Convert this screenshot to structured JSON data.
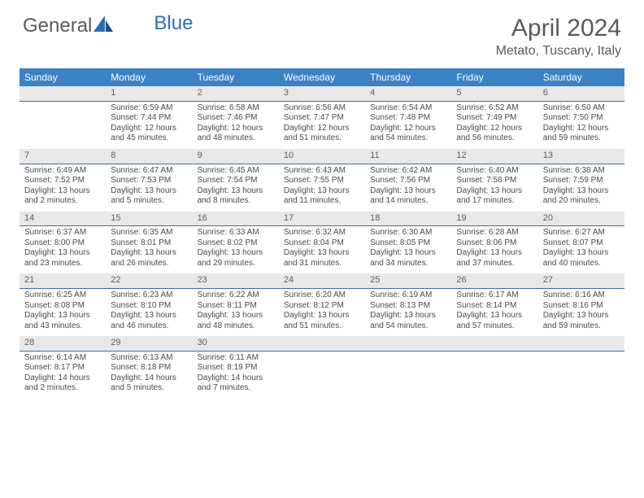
{
  "logo": {
    "text1": "General",
    "text2": "Blue"
  },
  "title": "April 2024",
  "location": "Metato, Tuscany, Italy",
  "colors": {
    "header_bg": "#3b82c4",
    "header_text": "#ffffff",
    "daynum_bg": "#e8e8e8",
    "daynum_border": "#3b6fa5",
    "body_text": "#4a4a4a",
    "title_text": "#5a5a5a",
    "logo_blue": "#2b6fb5"
  },
  "daysOfWeek": [
    "Sunday",
    "Monday",
    "Tuesday",
    "Wednesday",
    "Thursday",
    "Friday",
    "Saturday"
  ],
  "weeks": [
    [
      null,
      {
        "n": "1",
        "sr": "Sunrise: 6:59 AM",
        "ss": "Sunset: 7:44 PM",
        "d1": "Daylight: 12 hours",
        "d2": "and 45 minutes."
      },
      {
        "n": "2",
        "sr": "Sunrise: 6:58 AM",
        "ss": "Sunset: 7:46 PM",
        "d1": "Daylight: 12 hours",
        "d2": "and 48 minutes."
      },
      {
        "n": "3",
        "sr": "Sunrise: 6:56 AM",
        "ss": "Sunset: 7:47 PM",
        "d1": "Daylight: 12 hours",
        "d2": "and 51 minutes."
      },
      {
        "n": "4",
        "sr": "Sunrise: 6:54 AM",
        "ss": "Sunset: 7:48 PM",
        "d1": "Daylight: 12 hours",
        "d2": "and 54 minutes."
      },
      {
        "n": "5",
        "sr": "Sunrise: 6:52 AM",
        "ss": "Sunset: 7:49 PM",
        "d1": "Daylight: 12 hours",
        "d2": "and 56 minutes."
      },
      {
        "n": "6",
        "sr": "Sunrise: 6:50 AM",
        "ss": "Sunset: 7:50 PM",
        "d1": "Daylight: 12 hours",
        "d2": "and 59 minutes."
      }
    ],
    [
      {
        "n": "7",
        "sr": "Sunrise: 6:49 AM",
        "ss": "Sunset: 7:52 PM",
        "d1": "Daylight: 13 hours",
        "d2": "and 2 minutes."
      },
      {
        "n": "8",
        "sr": "Sunrise: 6:47 AM",
        "ss": "Sunset: 7:53 PM",
        "d1": "Daylight: 13 hours",
        "d2": "and 5 minutes."
      },
      {
        "n": "9",
        "sr": "Sunrise: 6:45 AM",
        "ss": "Sunset: 7:54 PM",
        "d1": "Daylight: 13 hours",
        "d2": "and 8 minutes."
      },
      {
        "n": "10",
        "sr": "Sunrise: 6:43 AM",
        "ss": "Sunset: 7:55 PM",
        "d1": "Daylight: 13 hours",
        "d2": "and 11 minutes."
      },
      {
        "n": "11",
        "sr": "Sunrise: 6:42 AM",
        "ss": "Sunset: 7:56 PM",
        "d1": "Daylight: 13 hours",
        "d2": "and 14 minutes."
      },
      {
        "n": "12",
        "sr": "Sunrise: 6:40 AM",
        "ss": "Sunset: 7:58 PM",
        "d1": "Daylight: 13 hours",
        "d2": "and 17 minutes."
      },
      {
        "n": "13",
        "sr": "Sunrise: 6:38 AM",
        "ss": "Sunset: 7:59 PM",
        "d1": "Daylight: 13 hours",
        "d2": "and 20 minutes."
      }
    ],
    [
      {
        "n": "14",
        "sr": "Sunrise: 6:37 AM",
        "ss": "Sunset: 8:00 PM",
        "d1": "Daylight: 13 hours",
        "d2": "and 23 minutes."
      },
      {
        "n": "15",
        "sr": "Sunrise: 6:35 AM",
        "ss": "Sunset: 8:01 PM",
        "d1": "Daylight: 13 hours",
        "d2": "and 26 minutes."
      },
      {
        "n": "16",
        "sr": "Sunrise: 6:33 AM",
        "ss": "Sunset: 8:02 PM",
        "d1": "Daylight: 13 hours",
        "d2": "and 29 minutes."
      },
      {
        "n": "17",
        "sr": "Sunrise: 6:32 AM",
        "ss": "Sunset: 8:04 PM",
        "d1": "Daylight: 13 hours",
        "d2": "and 31 minutes."
      },
      {
        "n": "18",
        "sr": "Sunrise: 6:30 AM",
        "ss": "Sunset: 8:05 PM",
        "d1": "Daylight: 13 hours",
        "d2": "and 34 minutes."
      },
      {
        "n": "19",
        "sr": "Sunrise: 6:28 AM",
        "ss": "Sunset: 8:06 PM",
        "d1": "Daylight: 13 hours",
        "d2": "and 37 minutes."
      },
      {
        "n": "20",
        "sr": "Sunrise: 6:27 AM",
        "ss": "Sunset: 8:07 PM",
        "d1": "Daylight: 13 hours",
        "d2": "and 40 minutes."
      }
    ],
    [
      {
        "n": "21",
        "sr": "Sunrise: 6:25 AM",
        "ss": "Sunset: 8:08 PM",
        "d1": "Daylight: 13 hours",
        "d2": "and 43 minutes."
      },
      {
        "n": "22",
        "sr": "Sunrise: 6:23 AM",
        "ss": "Sunset: 8:10 PM",
        "d1": "Daylight: 13 hours",
        "d2": "and 46 minutes."
      },
      {
        "n": "23",
        "sr": "Sunrise: 6:22 AM",
        "ss": "Sunset: 8:11 PM",
        "d1": "Daylight: 13 hours",
        "d2": "and 48 minutes."
      },
      {
        "n": "24",
        "sr": "Sunrise: 6:20 AM",
        "ss": "Sunset: 8:12 PM",
        "d1": "Daylight: 13 hours",
        "d2": "and 51 minutes."
      },
      {
        "n": "25",
        "sr": "Sunrise: 6:19 AM",
        "ss": "Sunset: 8:13 PM",
        "d1": "Daylight: 13 hours",
        "d2": "and 54 minutes."
      },
      {
        "n": "26",
        "sr": "Sunrise: 6:17 AM",
        "ss": "Sunset: 8:14 PM",
        "d1": "Daylight: 13 hours",
        "d2": "and 57 minutes."
      },
      {
        "n": "27",
        "sr": "Sunrise: 6:16 AM",
        "ss": "Sunset: 8:16 PM",
        "d1": "Daylight: 13 hours",
        "d2": "and 59 minutes."
      }
    ],
    [
      {
        "n": "28",
        "sr": "Sunrise: 6:14 AM",
        "ss": "Sunset: 8:17 PM",
        "d1": "Daylight: 14 hours",
        "d2": "and 2 minutes."
      },
      {
        "n": "29",
        "sr": "Sunrise: 6:13 AM",
        "ss": "Sunset: 8:18 PM",
        "d1": "Daylight: 14 hours",
        "d2": "and 5 minutes."
      },
      {
        "n": "30",
        "sr": "Sunrise: 6:11 AM",
        "ss": "Sunset: 8:19 PM",
        "d1": "Daylight: 14 hours",
        "d2": "and 7 minutes."
      },
      null,
      null,
      null,
      null
    ]
  ]
}
